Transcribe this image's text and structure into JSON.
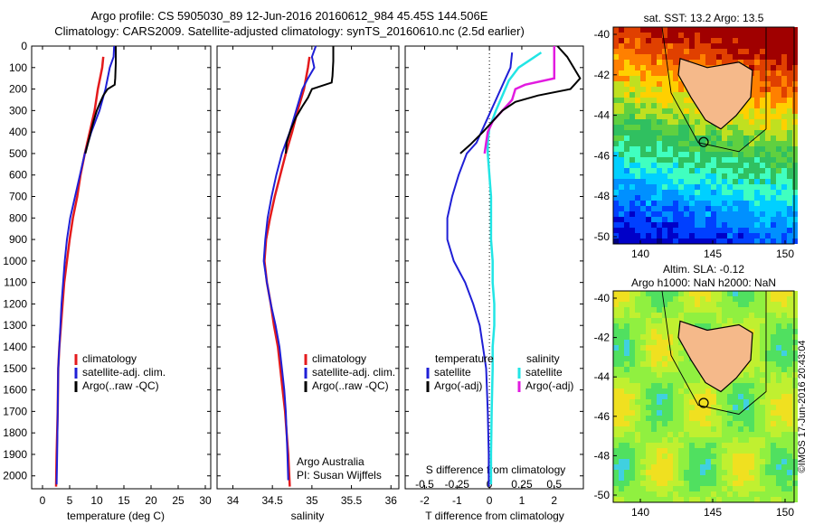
{
  "header": {
    "line1": "Argo profile: CS 5905030_89 12-Jun-2016 20160612_984 45.45S 144.506E",
    "line2": "Climatology: CARS2009. Satellite-adjusted climatology: synTS_20160610.nc (2.5d earlier)"
  },
  "colors": {
    "climatology": "#e41a1c",
    "satellite": "#1f1fd6",
    "argo": "#000000",
    "sal_satellite": "#22e5e5",
    "sal_argo": "#e21be0"
  },
  "depth_axis": {
    "ticks": [
      "0",
      "100",
      "200",
      "300",
      "400",
      "500",
      "600",
      "700",
      "800",
      "900",
      "1000",
      "1100",
      "1200",
      "1300",
      "1400",
      "1500",
      "1600",
      "1700",
      "1800",
      "1900",
      "2000"
    ]
  },
  "panels": {
    "temperature": {
      "xlabel": "temperature (deg C)",
      "xticks": [
        "0",
        "5",
        "10",
        "15",
        "20",
        "25",
        "30"
      ],
      "legend": [
        "climatology",
        "satellite-adj. clim.",
        "Argo(..raw -QC)"
      ]
    },
    "salinity": {
      "xlabel": "salinity",
      "xticks": [
        "34",
        "34.5",
        "35",
        "35.5",
        "36"
      ],
      "legend": [
        "climatology",
        "satellite-adj. clim.",
        "Argo(..raw -QC)"
      ],
      "credit1": "Argo Australia",
      "credit2": "PI: Susan Wijffels"
    },
    "difference": {
      "xlabel": "T difference from climatology",
      "top_label": "S difference from climatology",
      "xticks_T": [
        "-2",
        "-1",
        "0",
        "1",
        "2"
      ],
      "xticks_S": [
        "-0.5",
        "-0.25",
        "0",
        "0.25",
        "0.5"
      ],
      "legend_temp_title": "temperature",
      "legend_sal_title": "salinity",
      "legend_temp": [
        "satellite",
        "Argo(-adj)"
      ],
      "legend_sal": [
        "satellite",
        "Argo(-adj)"
      ]
    }
  },
  "maps": {
    "sst_title": "sat. SST: 13.2 Argo: 13.5",
    "sla_title1": "Altim. SLA: -0.12",
    "sla_title2": "Argo h1000: NaN h2000: NaN",
    "yticks": [
      "-40",
      "-42",
      "-44",
      "-46",
      "-48",
      "-50"
    ],
    "xticks": [
      "140",
      "145",
      "150"
    ],
    "stamp": "©IMOS 17-Jun-2016 20:43:04"
  },
  "chart_data": [
    {
      "type": "line",
      "title": "",
      "xlabel": "temperature (deg C)",
      "ylabel": "",
      "xlim": [
        -2,
        31
      ],
      "ylim": [
        2060,
        0
      ],
      "series": [
        {
          "name": "climatology",
          "points": [
            [
              11.2,
              50
            ],
            [
              11.0,
              100
            ],
            [
              10.6,
              150
            ],
            [
              10.2,
              200
            ],
            [
              9.6,
              300
            ],
            [
              8.7,
              400
            ],
            [
              7.8,
              500
            ],
            [
              7.0,
              600
            ],
            [
              6.4,
              700
            ],
            [
              5.6,
              800
            ],
            [
              5.0,
              900
            ],
            [
              4.5,
              1000
            ],
            [
              4.0,
              1100
            ],
            [
              3.7,
              1200
            ],
            [
              3.4,
              1300
            ],
            [
              3.1,
              1400
            ],
            [
              2.9,
              1500
            ],
            [
              2.8,
              1700
            ],
            [
              2.6,
              1900
            ],
            [
              2.5,
              2050
            ]
          ]
        },
        {
          "name": "satellite-adj. clim.",
          "points": [
            [
              13.2,
              0
            ],
            [
              13.1,
              50
            ],
            [
              12.4,
              100
            ],
            [
              11.6,
              200
            ],
            [
              10.5,
              300
            ],
            [
              9.0,
              400
            ],
            [
              7.8,
              500
            ],
            [
              6.9,
              600
            ],
            [
              6.0,
              700
            ],
            [
              5.1,
              800
            ],
            [
              4.5,
              900
            ],
            [
              4.1,
              1000
            ],
            [
              3.8,
              1100
            ],
            [
              3.5,
              1200
            ],
            [
              3.3,
              1300
            ],
            [
              3.1,
              1400
            ],
            [
              2.9,
              1500
            ],
            [
              2.8,
              1700
            ],
            [
              2.7,
              1900
            ],
            [
              2.6,
              2040
            ]
          ]
        },
        {
          "name": "Argo(..raw -QC)",
          "points": [
            [
              13.5,
              0
            ],
            [
              13.5,
              80
            ],
            [
              13.4,
              150
            ],
            [
              13.3,
              180
            ],
            [
              12.0,
              200
            ],
            [
              11.2,
              230
            ],
            [
              10.5,
              270
            ],
            [
              10.0,
              300
            ],
            [
              9.4,
              350
            ],
            [
              8.6,
              430
            ],
            [
              7.9,
              500
            ]
          ]
        }
      ]
    },
    {
      "type": "line",
      "title": "",
      "xlabel": "salinity",
      "ylabel": "",
      "xlim": [
        33.8,
        36.1
      ],
      "ylim": [
        2060,
        0
      ],
      "series": [
        {
          "name": "climatology",
          "points": [
            [
              34.97,
              50
            ],
            [
              34.95,
              100
            ],
            [
              34.9,
              200
            ],
            [
              34.82,
              300
            ],
            [
              34.75,
              400
            ],
            [
              34.67,
              500
            ],
            [
              34.6,
              600
            ],
            [
              34.53,
              700
            ],
            [
              34.47,
              800
            ],
            [
              34.42,
              900
            ],
            [
              34.4,
              1000
            ],
            [
              34.43,
              1100
            ],
            [
              34.48,
              1200
            ],
            [
              34.52,
              1300
            ],
            [
              34.57,
              1400
            ],
            [
              34.6,
              1500
            ],
            [
              34.63,
              1600
            ],
            [
              34.66,
              1700
            ],
            [
              34.68,
              1800
            ],
            [
              34.7,
              1900
            ],
            [
              34.72,
              2050
            ]
          ]
        },
        {
          "name": "satellite-adj. clim.",
          "points": [
            [
              35.05,
              0
            ],
            [
              35.0,
              50
            ],
            [
              35.03,
              100
            ],
            [
              34.95,
              150
            ],
            [
              34.88,
              200
            ],
            [
              34.8,
              300
            ],
            [
              34.72,
              400
            ],
            [
              34.62,
              500
            ],
            [
              34.55,
              600
            ],
            [
              34.49,
              700
            ],
            [
              34.44,
              800
            ],
            [
              34.41,
              900
            ],
            [
              34.39,
              1000
            ],
            [
              34.43,
              1100
            ],
            [
              34.48,
              1200
            ],
            [
              34.54,
              1300
            ],
            [
              34.59,
              1400
            ],
            [
              34.62,
              1500
            ],
            [
              34.65,
              1600
            ],
            [
              34.67,
              1700
            ],
            [
              34.68,
              1800
            ],
            [
              34.69,
              1900
            ],
            [
              34.7,
              2020
            ]
          ]
        },
        {
          "name": "Argo(..raw -QC)",
          "points": [
            [
              35.27,
              0
            ],
            [
              35.27,
              70
            ],
            [
              35.26,
              140
            ],
            [
              35.25,
              170
            ],
            [
              35.0,
              200
            ],
            [
              34.95,
              240
            ],
            [
              34.88,
              280
            ],
            [
              34.8,
              330
            ],
            [
              34.73,
              390
            ],
            [
              34.68,
              450
            ],
            [
              34.67,
              500
            ]
          ]
        }
      ]
    },
    {
      "type": "line",
      "title": "",
      "xlabel": "T difference from climatology",
      "ylabel": "",
      "xlim": [
        -2.6,
        2.9
      ],
      "ylim": [
        2060,
        0
      ],
      "series": [
        {
          "name": "satellite",
          "points": [
            [
              0.7,
              30
            ],
            [
              0.65,
              100
            ],
            [
              0.5,
              150
            ],
            [
              0.2,
              250
            ],
            [
              -0.1,
              350
            ],
            [
              -0.4,
              450
            ],
            [
              -0.7,
              500
            ],
            [
              -0.95,
              600
            ],
            [
              -1.15,
              700
            ],
            [
              -1.3,
              800
            ],
            [
              -1.3,
              900
            ],
            [
              -1.1,
              1000
            ],
            [
              -0.75,
              1100
            ],
            [
              -0.5,
              1200
            ],
            [
              -0.3,
              1300
            ],
            [
              -0.2,
              1400
            ],
            [
              -0.1,
              1500
            ],
            [
              -0.05,
              1700
            ],
            [
              -0.02,
              1900
            ],
            [
              -0.02,
              2050
            ]
          ]
        },
        {
          "name": "Argo(-adj)",
          "points": [
            [
              2.1,
              0
            ],
            [
              2.4,
              50
            ],
            [
              2.8,
              150
            ],
            [
              2.5,
              200
            ],
            [
              1.5,
              230
            ],
            [
              0.8,
              260
            ],
            [
              0.4,
              300
            ],
            [
              0.1,
              350
            ],
            [
              -0.2,
              400
            ],
            [
              -0.6,
              460
            ],
            [
              -0.9,
              500
            ]
          ]
        },
        {
          "name": "salinity satellite",
          "points": [
            [
              1.6,
              30
            ],
            [
              1.3,
              60
            ],
            [
              0.9,
              100
            ],
            [
              0.6,
              160
            ],
            [
              0.4,
              230
            ],
            [
              0.2,
              300
            ],
            [
              0.0,
              380
            ],
            [
              -0.05,
              450
            ],
            [
              -0.05,
              500
            ],
            [
              0.0,
              600
            ],
            [
              0.05,
              700
            ],
            [
              0.05,
              800
            ],
            [
              0.05,
              900
            ],
            [
              0.1,
              1000
            ],
            [
              0.1,
              1100
            ],
            [
              0.15,
              1200
            ],
            [
              0.15,
              1300
            ],
            [
              0.1,
              1400
            ],
            [
              0.1,
              1500
            ],
            [
              0.07,
              1700
            ],
            [
              0.05,
              1900
            ],
            [
              0.05,
              2040
            ]
          ]
        },
        {
          "name": "salinity Argo(-adj)",
          "points": [
            [
              2.0,
              0
            ],
            [
              2.0,
              150
            ],
            [
              1.1,
              180
            ],
            [
              0.8,
              200
            ],
            [
              0.7,
              250
            ],
            [
              0.4,
              300
            ],
            [
              0.1,
              350
            ],
            [
              -0.05,
              400
            ],
            [
              -0.1,
              450
            ],
            [
              -0.15,
              500
            ]
          ]
        }
      ]
    }
  ]
}
